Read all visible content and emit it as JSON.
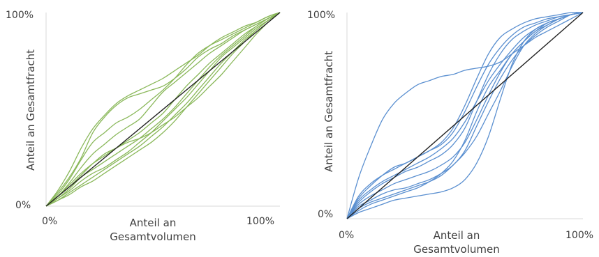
{
  "colors": {
    "left_curves": "#8ab85a",
    "right_curves": "#5a8fd0",
    "diagonal": "#222222",
    "axis": "#d9d9d9"
  },
  "chart_data": [
    {
      "type": "line",
      "title": "",
      "xlabel": [
        "Anteil an",
        "Gesamtvolumen"
      ],
      "ylabel": "Anteil an Gesamtfracht",
      "x_ticks": [
        "0%",
        "100%"
      ],
      "y_ticks": [
        "0%",
        "100%"
      ],
      "xlim": [
        0,
        100
      ],
      "ylim": [
        0,
        100
      ],
      "grid": false,
      "reference_line": [
        [
          0,
          0
        ],
        [
          100,
          100
        ]
      ],
      "series": [
        {
          "x": [
            0,
            5,
            10,
            15,
            20,
            25,
            30,
            35,
            40,
            45,
            50,
            55,
            60,
            65,
            70,
            75,
            80,
            85,
            90,
            95,
            100
          ],
          "y": [
            0,
            7,
            15,
            25,
            38,
            46,
            52,
            56,
            58,
            60,
            62,
            66,
            71,
            77,
            81,
            84,
            88,
            91,
            94,
            97,
            100
          ]
        },
        {
          "x": [
            0,
            5,
            10,
            15,
            20,
            25,
            30,
            35,
            40,
            45,
            50,
            55,
            60,
            65,
            70,
            75,
            80,
            85,
            90,
            95,
            100
          ],
          "y": [
            0,
            8,
            18,
            30,
            40,
            47,
            53,
            57,
            60,
            63,
            66,
            70,
            74,
            78,
            83,
            87,
            90,
            93,
            95,
            98,
            100
          ]
        },
        {
          "x": [
            0,
            5,
            10,
            15,
            20,
            25,
            30,
            35,
            40,
            45,
            50,
            55,
            60,
            65,
            70,
            75,
            80,
            85,
            90,
            95,
            100
          ],
          "y": [
            0,
            6,
            14,
            24,
            33,
            38,
            43,
            46,
            50,
            55,
            60,
            66,
            73,
            79,
            83,
            86,
            89,
            92,
            95,
            98,
            100
          ]
        },
        {
          "x": [
            0,
            5,
            10,
            15,
            20,
            25,
            30,
            35,
            40,
            45,
            50,
            55,
            60,
            65,
            70,
            75,
            80,
            85,
            90,
            95,
            100
          ],
          "y": [
            0,
            5,
            12,
            20,
            27,
            32,
            37,
            41,
            45,
            52,
            59,
            64,
            69,
            74,
            79,
            83,
            87,
            91,
            94,
            97,
            100
          ]
        },
        {
          "x": [
            0,
            5,
            10,
            15,
            20,
            25,
            30,
            35,
            40,
            45,
            50,
            55,
            60,
            65,
            70,
            75,
            80,
            85,
            90,
            95,
            100
          ],
          "y": [
            0,
            5,
            11,
            17,
            22,
            26,
            30,
            34,
            38,
            43,
            48,
            55,
            62,
            68,
            74,
            79,
            84,
            89,
            93,
            97,
            100
          ]
        },
        {
          "x": [
            0,
            5,
            10,
            15,
            20,
            25,
            30,
            35,
            40,
            45,
            50,
            55,
            60,
            65,
            70,
            75,
            80,
            85,
            90,
            95,
            100
          ],
          "y": [
            0,
            4,
            9,
            15,
            19,
            23,
            27,
            31,
            35,
            40,
            45,
            51,
            58,
            65,
            72,
            78,
            83,
            88,
            93,
            97,
            100
          ]
        },
        {
          "x": [
            0,
            5,
            10,
            15,
            20,
            25,
            30,
            35,
            40,
            45,
            50,
            55,
            60,
            65,
            70,
            75,
            80,
            85,
            90,
            95,
            100
          ],
          "y": [
            0,
            4,
            8,
            13,
            17,
            20,
            24,
            28,
            33,
            38,
            44,
            50,
            56,
            63,
            70,
            77,
            82,
            87,
            92,
            96,
            100
          ]
        },
        {
          "x": [
            0,
            5,
            10,
            15,
            20,
            25,
            30,
            35,
            40,
            45,
            50,
            55,
            60,
            65,
            70,
            75,
            80,
            85,
            90,
            95,
            100
          ],
          "y": [
            0,
            3,
            7,
            11,
            15,
            19,
            23,
            27,
            31,
            36,
            41,
            47,
            53,
            60,
            67,
            74,
            80,
            86,
            91,
            96,
            100
          ]
        },
        {
          "x": [
            0,
            5,
            10,
            15,
            20,
            25,
            30,
            35,
            40,
            45,
            50,
            55,
            60,
            65,
            70,
            75,
            80,
            85,
            90,
            95,
            100
          ],
          "y": [
            0,
            3,
            6,
            10,
            13,
            17,
            21,
            25,
            29,
            33,
            38,
            44,
            51,
            58,
            65,
            72,
            79,
            85,
            91,
            96,
            100
          ]
        },
        {
          "x": [
            0,
            5,
            10,
            15,
            20,
            25,
            30,
            35,
            40,
            45,
            50,
            55,
            60,
            65,
            70,
            75,
            80,
            85,
            90,
            95,
            100
          ],
          "y": [
            0,
            5,
            10,
            16,
            22,
            27,
            30,
            33,
            35,
            38,
            42,
            46,
            51,
            56,
            62,
            68,
            75,
            82,
            89,
            95,
            100
          ]
        }
      ]
    },
    {
      "type": "line",
      "title": "",
      "xlabel": [
        "Anteil an",
        "Gesamtvolumen"
      ],
      "ylabel": "Anteil an Gesamtfracht",
      "x_ticks": [
        "0%",
        "100%"
      ],
      "y_ticks": [
        "0%",
        "100%"
      ],
      "xlim": [
        0,
        100
      ],
      "ylim": [
        0,
        100
      ],
      "grid": false,
      "reference_line": [
        [
          0,
          0
        ],
        [
          100,
          100
        ]
      ],
      "series": [
        {
          "x": [
            0,
            5,
            10,
            15,
            20,
            25,
            30,
            35,
            40,
            45,
            50,
            55,
            60,
            65,
            70,
            75,
            80,
            85,
            90,
            95,
            100
          ],
          "y": [
            0,
            20,
            35,
            48,
            56,
            61,
            65,
            67,
            69,
            70,
            72,
            73,
            74,
            76,
            80,
            84,
            88,
            91,
            94,
            97,
            100
          ]
        },
        {
          "x": [
            0,
            5,
            10,
            15,
            20,
            25,
            30,
            35,
            40,
            45,
            50,
            55,
            60,
            65,
            70,
            75,
            80,
            85,
            90,
            95,
            100
          ],
          "y": [
            0,
            10,
            16,
            21,
            25,
            27,
            30,
            33,
            37,
            44,
            55,
            68,
            80,
            88,
            92,
            95,
            97,
            98,
            99,
            100,
            100
          ]
        },
        {
          "x": [
            0,
            5,
            10,
            15,
            20,
            25,
            30,
            35,
            40,
            45,
            50,
            55,
            60,
            65,
            70,
            75,
            80,
            85,
            90,
            95,
            100
          ],
          "y": [
            0,
            11,
            17,
            21,
            24,
            27,
            30,
            33,
            36,
            42,
            52,
            64,
            75,
            83,
            89,
            93,
            95,
            97,
            98,
            99,
            100
          ]
        },
        {
          "x": [
            0,
            5,
            10,
            15,
            20,
            25,
            30,
            35,
            40,
            45,
            50,
            55,
            60,
            65,
            70,
            75,
            80,
            85,
            90,
            95,
            100
          ],
          "y": [
            0,
            8,
            13,
            17,
            20,
            23,
            25,
            28,
            31,
            36,
            44,
            57,
            70,
            80,
            87,
            91,
            94,
            96,
            98,
            99,
            100
          ]
        },
        {
          "x": [
            0,
            5,
            10,
            15,
            20,
            25,
            30,
            35,
            40,
            45,
            50,
            55,
            60,
            65,
            70,
            75,
            80,
            85,
            90,
            95,
            100
          ],
          "y": [
            0,
            9,
            14,
            18,
            21,
            24,
            27,
            30,
            34,
            39,
            47,
            57,
            67,
            75,
            82,
            88,
            92,
            95,
            97,
            99,
            100
          ]
        },
        {
          "x": [
            0,
            5,
            10,
            15,
            20,
            25,
            30,
            35,
            40,
            45,
            50,
            55,
            60,
            65,
            70,
            75,
            80,
            85,
            90,
            95,
            100
          ],
          "y": [
            0,
            7,
            11,
            14,
            17,
            19,
            21,
            23,
            26,
            30,
            37,
            48,
            60,
            71,
            80,
            86,
            91,
            94,
            97,
            99,
            100
          ]
        },
        {
          "x": [
            0,
            5,
            10,
            15,
            20,
            25,
            30,
            35,
            40,
            45,
            50,
            55,
            60,
            65,
            70,
            75,
            80,
            85,
            90,
            95,
            100
          ],
          "y": [
            0,
            6,
            9,
            12,
            14,
            15,
            17,
            19,
            22,
            26,
            33,
            45,
            57,
            68,
            77,
            84,
            89,
            93,
            96,
            99,
            100
          ]
        },
        {
          "x": [
            0,
            5,
            10,
            15,
            20,
            25,
            30,
            35,
            40,
            45,
            50,
            55,
            60,
            65,
            70,
            75,
            80,
            85,
            90,
            95,
            100
          ],
          "y": [
            0,
            5,
            8,
            10,
            12,
            14,
            16,
            18,
            21,
            26,
            32,
            40,
            51,
            62,
            74,
            84,
            90,
            94,
            97,
            99,
            100
          ]
        },
        {
          "x": [
            0,
            5,
            10,
            15,
            20,
            25,
            30,
            35,
            40,
            45,
            50,
            55,
            60,
            65,
            70,
            75,
            80,
            85,
            90,
            95,
            100
          ],
          "y": [
            0,
            4,
            7,
            9,
            11,
            13,
            15,
            18,
            22,
            28,
            38,
            52,
            64,
            72,
            80,
            86,
            91,
            95,
            97,
            99,
            100
          ]
        },
        {
          "x": [
            0,
            5,
            10,
            15,
            20,
            25,
            30,
            35,
            40,
            45,
            50,
            55,
            60,
            65,
            70,
            75,
            80,
            85,
            90,
            95,
            100
          ],
          "y": [
            0,
            3,
            5,
            7,
            9,
            10,
            11,
            12,
            13,
            15,
            19,
            27,
            40,
            58,
            75,
            86,
            92,
            95,
            97,
            99,
            100
          ]
        }
      ]
    }
  ]
}
